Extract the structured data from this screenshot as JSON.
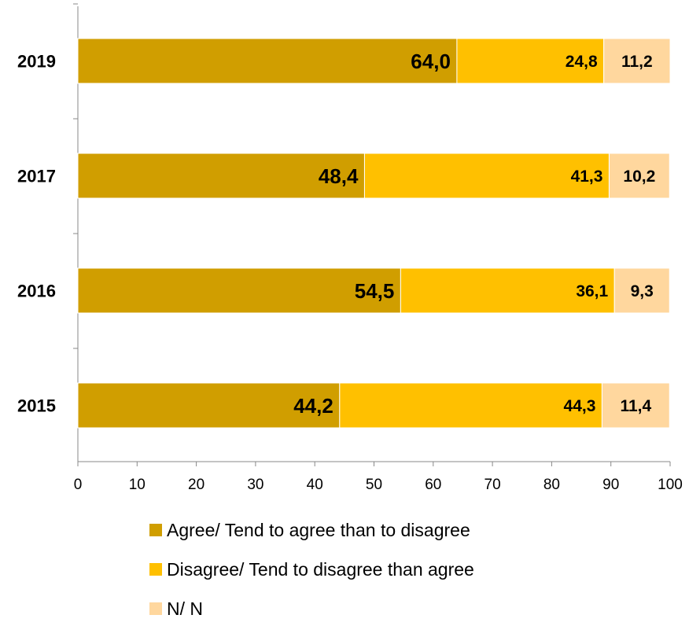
{
  "chart_data": {
    "type": "bar",
    "orientation": "horizontal",
    "stacked": true,
    "categories": [
      "2019",
      "2017",
      "2016",
      "2015"
    ],
    "series": [
      {
        "name": "Agree/ Tend to agree than to disagree",
        "color": "#D09E00",
        "values": [
          64.0,
          48.4,
          54.5,
          44.2
        ],
        "labels": [
          "64,0",
          "48,4",
          "54,5",
          "44,2"
        ]
      },
      {
        "name": "Disagree/ Tend to disagree than agree",
        "color": "#FFC000",
        "values": [
          24.8,
          41.3,
          36.1,
          44.3
        ],
        "labels": [
          "24,8",
          "41,3",
          "36,1",
          "44,3"
        ]
      },
      {
        "name": "N/ N",
        "color": "#FFD79E",
        "values": [
          11.2,
          10.2,
          9.3,
          11.4
        ],
        "labels": [
          "11,2",
          "10,2",
          "9,3",
          "11,4"
        ]
      }
    ],
    "xlim": [
      0,
      100
    ],
    "xticks": [
      "0",
      "10",
      "20",
      "30",
      "40",
      "50",
      "60",
      "70",
      "80",
      "90",
      "100"
    ],
    "grid": false,
    "legend_position": "bottom"
  }
}
